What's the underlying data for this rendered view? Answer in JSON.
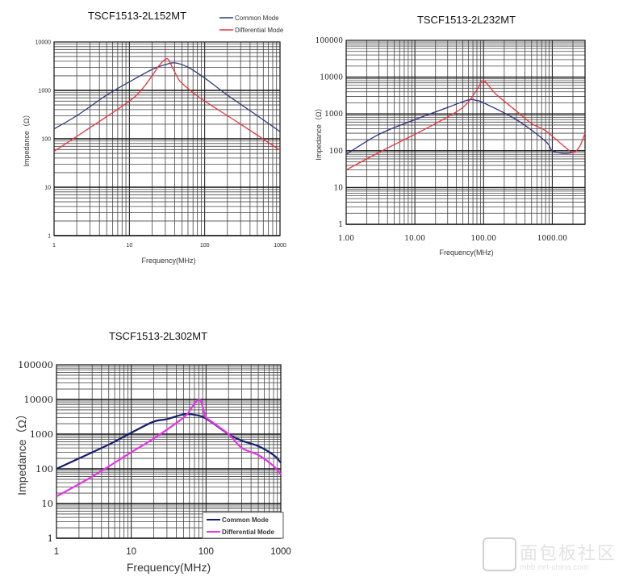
{
  "chart_data": [
    {
      "type": "line",
      "title": "TSCF1513-2L152MT",
      "xlabel": "Frequency(MHz)",
      "ylabel": "Impedance（Ω）",
      "x_scale": "log",
      "y_scale": "log",
      "xlim": [
        1,
        1000
      ],
      "ylim": [
        1,
        10000
      ],
      "x_ticks": [
        "1",
        "10",
        "100",
        "1000"
      ],
      "y_ticks": [
        "1",
        "10",
        "100",
        "1000",
        "10000"
      ],
      "grid": true,
      "legend": "top-right outside",
      "series": [
        {
          "name": "Common Mode",
          "color": "#2e3f7a",
          "x": [
            1,
            2,
            5,
            10,
            20,
            30,
            40,
            60,
            100,
            200,
            500,
            800,
            1000
          ],
          "y": [
            160,
            300,
            800,
            1500,
            2700,
            3400,
            3700,
            3000,
            1800,
            800,
            300,
            180,
            140
          ]
        },
        {
          "name": "Differential Mode",
          "color": "#e8323c",
          "x": [
            1,
            3,
            10,
            15,
            20,
            25,
            30,
            33,
            38,
            45,
            50,
            70,
            100,
            300,
            1000
          ],
          "y": [
            55,
            170,
            600,
            1100,
            2000,
            3300,
            4400,
            4300,
            2800,
            1700,
            1400,
            900,
            600,
            200,
            58
          ]
        }
      ]
    },
    {
      "type": "line",
      "title": "TSCF1513-2L232MT",
      "xlabel": "Frequency(MHz)",
      "ylabel": "Impedance（Ω）",
      "x_scale": "log",
      "y_scale": "log",
      "xlim": [
        1,
        3000
      ],
      "ylim": [
        1,
        100000
      ],
      "x_ticks": [
        "1.00",
        "10.00",
        "100.00",
        "1000.00"
      ],
      "y_ticks": [
        "1",
        "10",
        "100",
        "1000",
        "10000",
        "100000"
      ],
      "grid": true,
      "series": [
        {
          "color": "#2e2e80",
          "x": [
            1,
            3,
            10,
            30,
            60,
            80,
            100,
            300,
            800,
            1000,
            1500,
            2000
          ],
          "y": [
            80,
            280,
            700,
            1500,
            2400,
            2300,
            2000,
            700,
            180,
            100,
            85,
            90
          ]
        },
        {
          "color": "#e8323c",
          "x": [
            1,
            3,
            10,
            20,
            50,
            80,
            100,
            150,
            300,
            500,
            800,
            1500,
            2000,
            2500,
            3000
          ],
          "y": [
            30,
            90,
            280,
            550,
            1500,
            4500,
            8000,
            3500,
            1200,
            550,
            350,
            130,
            90,
            130,
            300
          ]
        }
      ]
    },
    {
      "type": "line",
      "title": "TSCF1513-2L302MT",
      "xlabel": "Frequency(MHz)",
      "ylabel": "Impedance（Ω）",
      "x_scale": "log",
      "y_scale": "log",
      "xlim": [
        1,
        1000
      ],
      "ylim": [
        1,
        100000
      ],
      "x_ticks": [
        "1",
        "10",
        "100",
        "1000"
      ],
      "y_ticks": [
        "1",
        "10",
        "100",
        "1000",
        "10000",
        "100000"
      ],
      "grid": true,
      "legend": "bottom-right",
      "series": [
        {
          "name": "Common Mode",
          "color": "#141c6e",
          "x": [
            1,
            2,
            5,
            10,
            20,
            30,
            50,
            70,
            100,
            200,
            300,
            500,
            800,
            1000
          ],
          "y": [
            100,
            200,
            500,
            1100,
            2300,
            2700,
            3700,
            3600,
            2800,
            1000,
            650,
            450,
            250,
            150
          ]
        },
        {
          "name": "Differential Mode",
          "color": "#e633e6",
          "x": [
            1,
            3,
            10,
            20,
            50,
            65,
            75,
            85,
            95,
            100,
            200,
            300,
            500,
            800,
            1000
          ],
          "y": [
            16,
            60,
            300,
            750,
            3000,
            6000,
            9000,
            9000,
            4000,
            3000,
            1000,
            400,
            250,
            120,
            70
          ]
        }
      ]
    }
  ],
  "watermark": {
    "text": "面包板社区",
    "url": "mbb.eet-china.com"
  }
}
